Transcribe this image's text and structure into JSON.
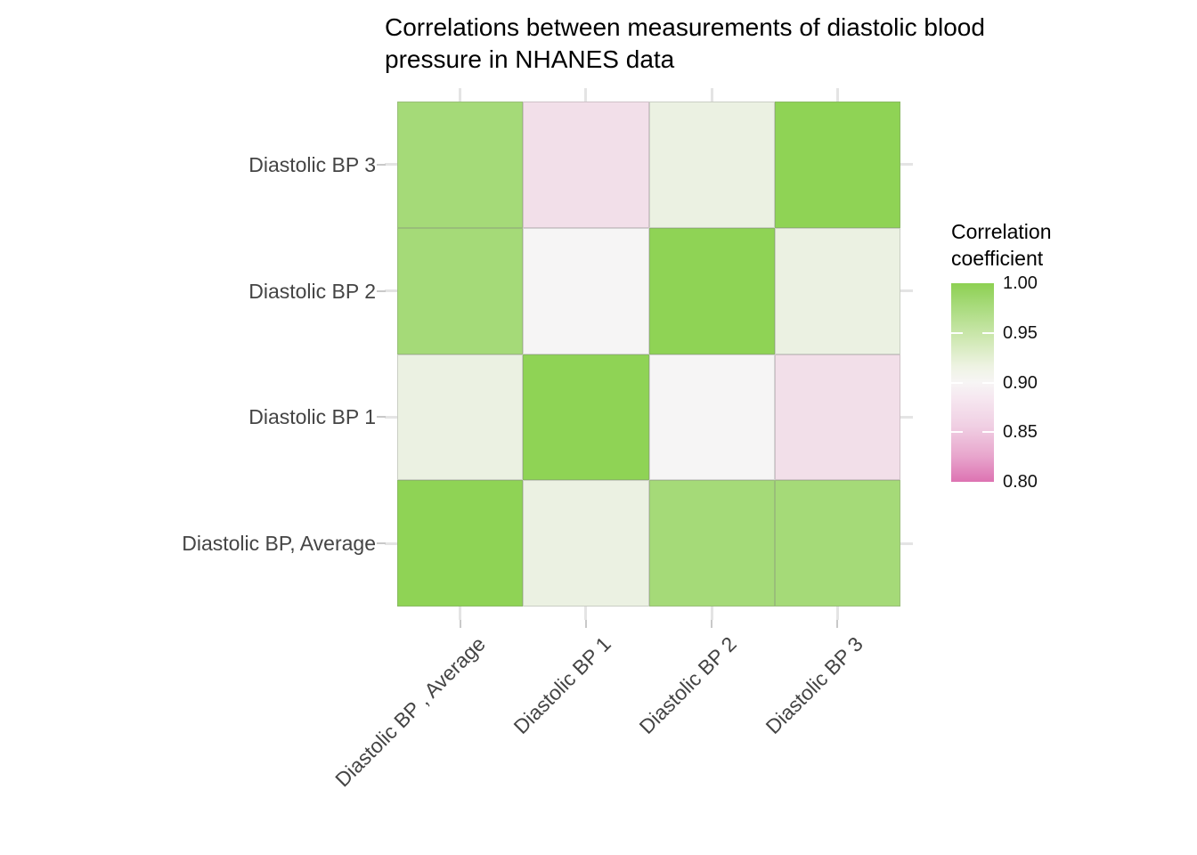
{
  "figure": {
    "title": "Correlations between measurements of diastolic blood pressure in NHANES data"
  },
  "chart_data": {
    "type": "heatmap",
    "title": "Correlations between measurements of diastolic blood pressure in NHANES data",
    "x_categories": [
      "Diastolic BP , Average",
      "Diastolic BP 1",
      "Diastolic BP 2",
      "Diastolic BP 3"
    ],
    "y_categories": [
      "Diastolic BP 3",
      "Diastolic BP 2",
      "Diastolic BP 1",
      "Diastolic BP, Average"
    ],
    "rows_top_to_bottom": true,
    "values": [
      [
        0.98,
        0.88,
        0.91,
        1.0
      ],
      [
        0.98,
        0.9,
        1.0,
        0.91
      ],
      [
        0.91,
        1.0,
        0.9,
        0.88
      ],
      [
        1.0,
        0.91,
        0.98,
        0.98
      ]
    ],
    "cell_colors": [
      [
        "#a5da78",
        "#f2dfe9",
        "#ebf1e2",
        "#8fd355"
      ],
      [
        "#a5da78",
        "#f6f5f5",
        "#8fd355",
        "#ebf1e2"
      ],
      [
        "#ebf1e2",
        "#8fd355",
        "#f6f5f5",
        "#f2dfe9"
      ],
      [
        "#8fd355",
        "#ebf1e2",
        "#a5da78",
        "#a5da78"
      ]
    ],
    "legend": {
      "title": "Correlation coefficient",
      "tick_labels": [
        "1.00",
        "0.95",
        "0.90",
        "0.85",
        "0.80"
      ],
      "limits": [
        0.8,
        1.0
      ],
      "color_high": "#8fd355",
      "color_mid": "#f7f5f5",
      "color_low": "#dd73b2",
      "position": "right"
    },
    "layout_hints": {
      "grid": "light gray gridline stubs visible only in panel margins outside tile area",
      "x_label_rotation_deg": 45
    }
  }
}
